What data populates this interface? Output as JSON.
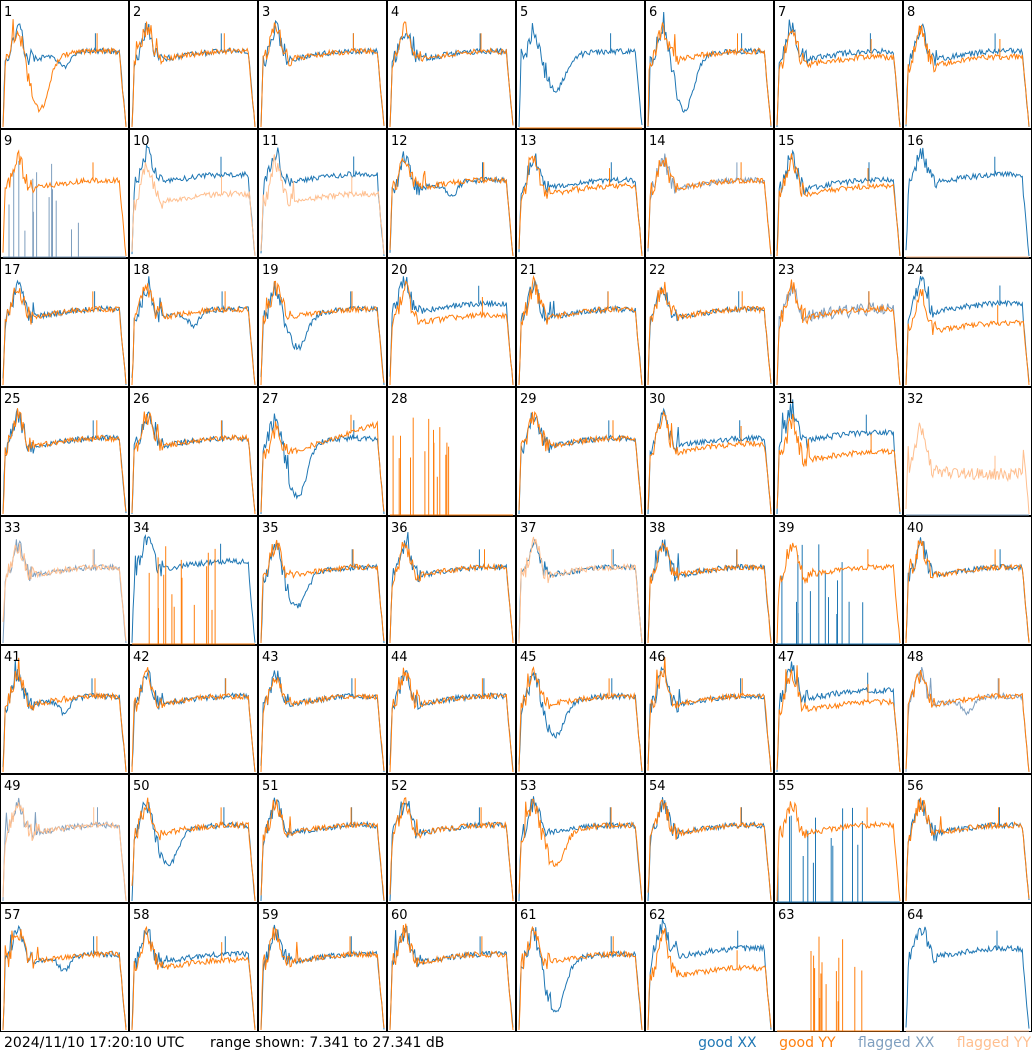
{
  "footer": {
    "timestamp": "2024/11/10 17:20:10 UTC",
    "range_text": "range shown: 7.341 to 27.341 dB"
  },
  "legend": {
    "good_xx": "good XX",
    "good_yy": "good YY",
    "flagged_xx": "flagged XX",
    "flagged_yy": "flagged YY"
  },
  "colors": {
    "good_xx": "#1f77b4",
    "good_yy": "#ff7f0e",
    "flagged_xx": "#7f9fbf",
    "flagged_yy": "#ffbf8f"
  },
  "chart_data": {
    "type": "line",
    "layout": "8x8 small multiples",
    "ylim": [
      7.341,
      27.341
    ],
    "series_names": [
      "XX",
      "YY"
    ],
    "panels": [
      {
        "id": 1,
        "xx": "good",
        "yy": "good",
        "shape_xx": "dip_small",
        "shape_yy": "dip_deep"
      },
      {
        "id": 2,
        "xx": "good",
        "yy": "good",
        "shape_xx": "normal",
        "shape_yy": "normal"
      },
      {
        "id": 3,
        "xx": "good",
        "yy": "good",
        "shape_xx": "normal",
        "shape_yy": "normal"
      },
      {
        "id": 4,
        "xx": "good",
        "yy": "good",
        "shape_xx": "normal",
        "shape_yy": "normal"
      },
      {
        "id": 5,
        "xx": "good",
        "yy": "good",
        "shape_xx": "dip_mid",
        "shape_yy": "dead"
      },
      {
        "id": 6,
        "xx": "good",
        "yy": "good",
        "shape_xx": "dip_deep",
        "shape_yy": "normal"
      },
      {
        "id": 7,
        "xx": "good",
        "yy": "good",
        "shape_xx": "normal",
        "shape_yy": "lowmid"
      },
      {
        "id": 8,
        "xx": "good",
        "yy": "good",
        "shape_xx": "normal",
        "shape_yy": "lowmid"
      },
      {
        "id": 9,
        "xx": "flagged",
        "yy": "good",
        "shape_xx": "dead_spiky",
        "shape_yy": "normal"
      },
      {
        "id": 10,
        "xx": "good",
        "yy": "flagged",
        "shape_xx": "high",
        "shape_yy": "low"
      },
      {
        "id": 11,
        "xx": "good",
        "yy": "flagged",
        "shape_xx": "high",
        "shape_yy": "low"
      },
      {
        "id": 12,
        "xx": "good",
        "yy": "good",
        "shape_xx": "dip_small",
        "shape_yy": "normal"
      },
      {
        "id": 13,
        "xx": "good",
        "yy": "good",
        "shape_xx": "normal",
        "shape_yy": "lowmid"
      },
      {
        "id": 14,
        "xx": "flagged",
        "yy": "good",
        "shape_xx": "normal",
        "shape_yy": "normal"
      },
      {
        "id": 15,
        "xx": "good",
        "yy": "good",
        "shape_xx": "normal",
        "shape_yy": "lowmid"
      },
      {
        "id": 16,
        "xx": "good",
        "yy": "flagged",
        "shape_xx": "high",
        "shape_yy": "dead"
      },
      {
        "id": 17,
        "xx": "good",
        "yy": "good",
        "shape_xx": "normal",
        "shape_yy": "normal"
      },
      {
        "id": 18,
        "xx": "good",
        "yy": "good",
        "shape_xx": "dip_small",
        "shape_yy": "normal"
      },
      {
        "id": 19,
        "xx": "good",
        "yy": "good",
        "shape_xx": "dip_mid",
        "shape_yy": "normal"
      },
      {
        "id": 20,
        "xx": "good",
        "yy": "good",
        "shape_xx": "high",
        "shape_yy": "lowmid"
      },
      {
        "id": 21,
        "xx": "good",
        "yy": "good",
        "shape_xx": "normal",
        "shape_yy": "normal"
      },
      {
        "id": 22,
        "xx": "good",
        "yy": "good",
        "shape_xx": "normal",
        "shape_yy": "normal"
      },
      {
        "id": 23,
        "xx": "flagged",
        "yy": "good",
        "shape_xx": "noise",
        "shape_yy": "normal"
      },
      {
        "id": 24,
        "xx": "good",
        "yy": "good",
        "shape_xx": "high",
        "shape_yy": "low"
      },
      {
        "id": 25,
        "xx": "good",
        "yy": "good",
        "shape_xx": "normal",
        "shape_yy": "normal"
      },
      {
        "id": 26,
        "xx": "good",
        "yy": "good",
        "shape_xx": "normal",
        "shape_yy": "normal"
      },
      {
        "id": 27,
        "xx": "good",
        "yy": "good",
        "shape_xx": "dip_deep",
        "shape_yy": "rising"
      },
      {
        "id": 28,
        "xx": "good",
        "yy": "good",
        "shape_xx": "dead",
        "shape_yy": "dead_spiky"
      },
      {
        "id": 29,
        "xx": "good",
        "yy": "good",
        "shape_xx": "normal",
        "shape_yy": "normal"
      },
      {
        "id": 30,
        "xx": "good",
        "yy": "good",
        "shape_xx": "normal",
        "shape_yy": "lowmid"
      },
      {
        "id": 31,
        "xx": "good",
        "yy": "good",
        "shape_xx": "high",
        "shape_yy": "low"
      },
      {
        "id": 32,
        "xx": "flagged",
        "yy": "flagged",
        "shape_xx": "dead",
        "shape_yy": "noisy_low"
      },
      {
        "id": 33,
        "xx": "flagged",
        "yy": "flagged",
        "shape_xx": "normal",
        "shape_yy": "normal"
      },
      {
        "id": 34,
        "xx": "good",
        "yy": "good",
        "shape_xx": "high",
        "shape_yy": "dead_spiky"
      },
      {
        "id": 35,
        "xx": "good",
        "yy": "good",
        "shape_xx": "dip_mid",
        "shape_yy": "normal"
      },
      {
        "id": 36,
        "xx": "good",
        "yy": "good",
        "shape_xx": "normal",
        "shape_yy": "normal"
      },
      {
        "id": 37,
        "xx": "good",
        "yy": "flagged",
        "shape_xx": "normal",
        "shape_yy": "normal"
      },
      {
        "id": 38,
        "xx": "good",
        "yy": "good",
        "shape_xx": "normal",
        "shape_yy": "normal"
      },
      {
        "id": 39,
        "xx": "good",
        "yy": "good",
        "shape_xx": "dead_spiky",
        "shape_yy": "normal"
      },
      {
        "id": 40,
        "xx": "good",
        "yy": "good",
        "shape_xx": "normal",
        "shape_yy": "normal"
      },
      {
        "id": 41,
        "xx": "good",
        "yy": "good",
        "shape_xx": "dip_small",
        "shape_yy": "normal"
      },
      {
        "id": 42,
        "xx": "good",
        "yy": "good",
        "shape_xx": "normal",
        "shape_yy": "normal"
      },
      {
        "id": 43,
        "xx": "good",
        "yy": "good",
        "shape_xx": "normal",
        "shape_yy": "normal"
      },
      {
        "id": 44,
        "xx": "good",
        "yy": "good",
        "shape_xx": "normal",
        "shape_yy": "normal"
      },
      {
        "id": 45,
        "xx": "good",
        "yy": "good",
        "shape_xx": "dip_mid",
        "shape_yy": "normal"
      },
      {
        "id": 46,
        "xx": "good",
        "yy": "good",
        "shape_xx": "normal",
        "shape_yy": "normal"
      },
      {
        "id": 47,
        "xx": "good",
        "yy": "good",
        "shape_xx": "high",
        "shape_yy": "lowmid"
      },
      {
        "id": 48,
        "xx": "flagged",
        "yy": "good",
        "shape_xx": "dip_small",
        "shape_yy": "normal"
      },
      {
        "id": 49,
        "xx": "flagged",
        "yy": "flagged",
        "shape_xx": "normal",
        "shape_yy": "normal"
      },
      {
        "id": 50,
        "xx": "good",
        "yy": "good",
        "shape_xx": "dip_mid",
        "shape_yy": "normal"
      },
      {
        "id": 51,
        "xx": "good",
        "yy": "good",
        "shape_xx": "normal",
        "shape_yy": "normal"
      },
      {
        "id": 52,
        "xx": "good",
        "yy": "good",
        "shape_xx": "normal",
        "shape_yy": "normal"
      },
      {
        "id": 53,
        "xx": "good",
        "yy": "good",
        "shape_xx": "normal",
        "shape_yy": "dip_mid"
      },
      {
        "id": 54,
        "xx": "good",
        "yy": "good",
        "shape_xx": "normal",
        "shape_yy": "normal"
      },
      {
        "id": 55,
        "xx": "good",
        "yy": "good",
        "shape_xx": "dead_spiky",
        "shape_yy": "normal"
      },
      {
        "id": 56,
        "xx": "good",
        "yy": "good",
        "shape_xx": "normal",
        "shape_yy": "normal"
      },
      {
        "id": 57,
        "xx": "good",
        "yy": "good",
        "shape_xx": "dip_small",
        "shape_yy": "normal"
      },
      {
        "id": 58,
        "xx": "good",
        "yy": "good",
        "shape_xx": "normal",
        "shape_yy": "lowmid"
      },
      {
        "id": 59,
        "xx": "good",
        "yy": "good",
        "shape_xx": "normal",
        "shape_yy": "normal"
      },
      {
        "id": 60,
        "xx": "good",
        "yy": "good",
        "shape_xx": "normal",
        "shape_yy": "normal"
      },
      {
        "id": 61,
        "xx": "good",
        "yy": "good",
        "shape_xx": "dip_deep",
        "shape_yy": "normal"
      },
      {
        "id": 62,
        "xx": "good",
        "yy": "good",
        "shape_xx": "high",
        "shape_yy": "low"
      },
      {
        "id": 63,
        "xx": "good",
        "yy": "good",
        "shape_xx": "dead",
        "shape_yy": "dead_spiky"
      },
      {
        "id": 64,
        "xx": "good",
        "yy": "flagged",
        "shape_xx": "high",
        "shape_yy": "dead"
      }
    ]
  }
}
